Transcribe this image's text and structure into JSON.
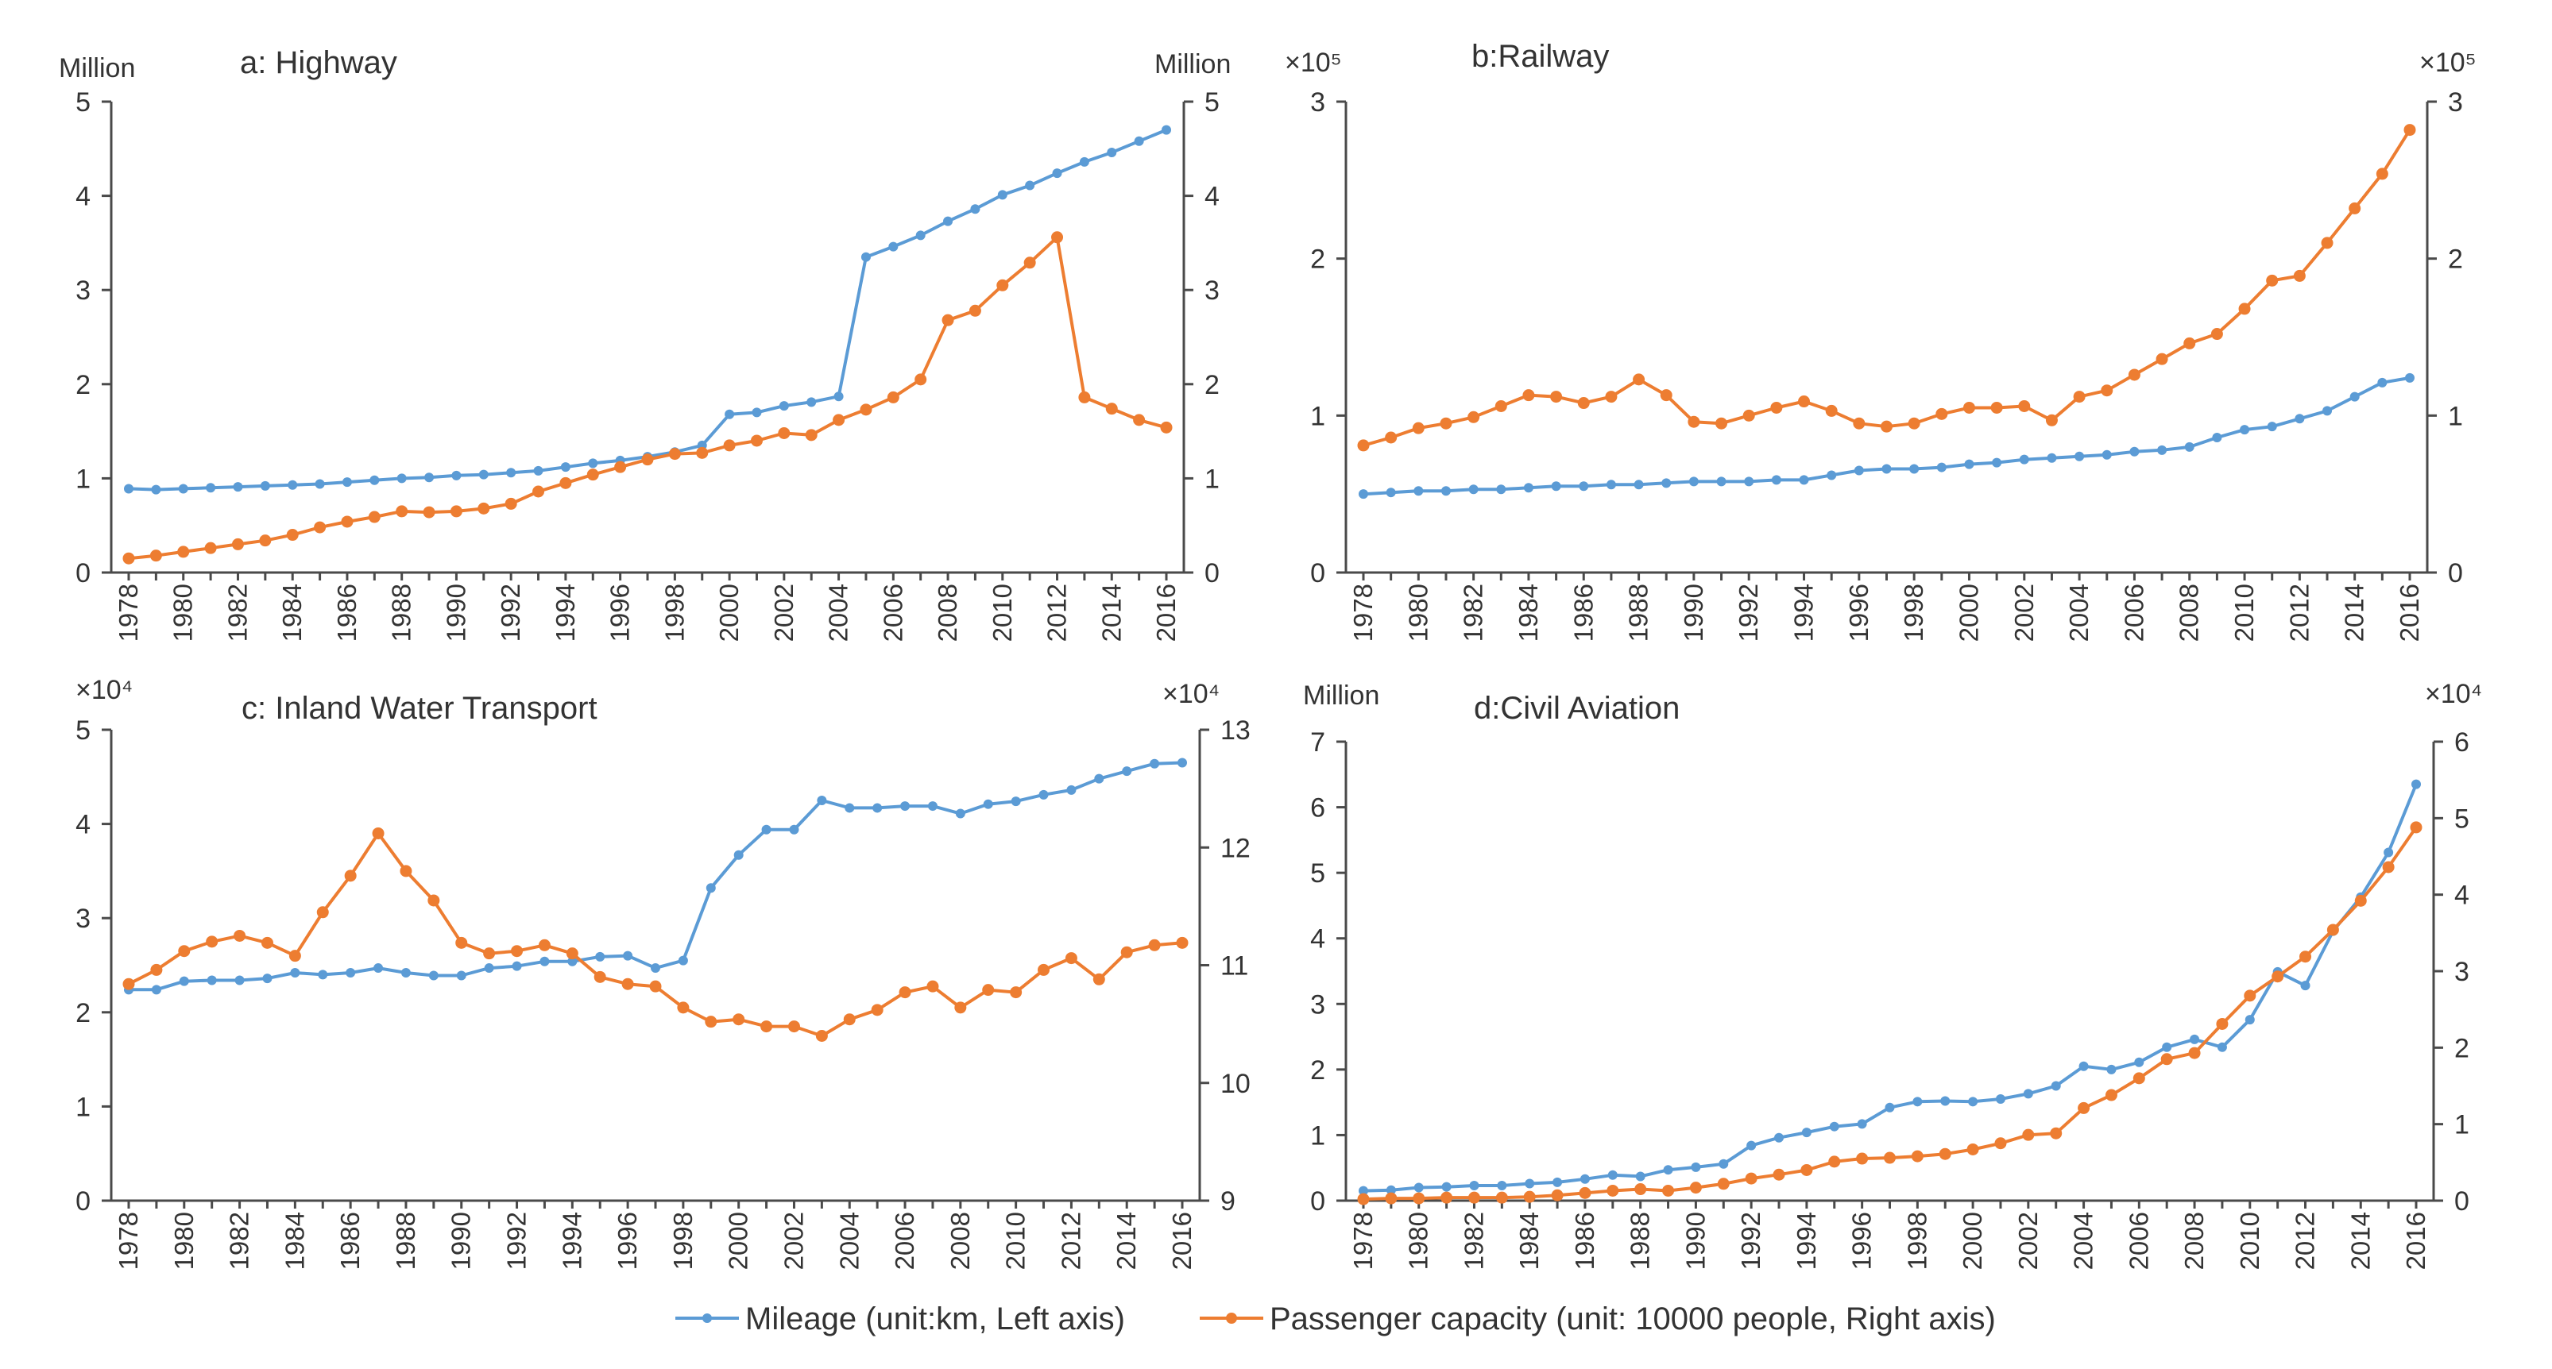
{
  "colors": {
    "mileage": "#5B9BD5",
    "passenger": "#ED7D31",
    "axis": "#4A4A4A",
    "text": "#333333"
  },
  "legend": {
    "mileage": "Mileage (unit:km, Left axis)",
    "passenger": "Passenger capacity (unit: 10000 people, Right axis)"
  },
  "chart_data": [
    {
      "type": "line",
      "title": "a: Highway",
      "left_unit": "Million",
      "right_unit": "Million",
      "x": [
        1978,
        1979,
        1980,
        1981,
        1982,
        1983,
        1984,
        1985,
        1986,
        1987,
        1988,
        1989,
        1990,
        1991,
        1992,
        1993,
        1994,
        1995,
        1996,
        1997,
        1998,
        1999,
        2000,
        2001,
        2002,
        2003,
        2004,
        2005,
        2006,
        2007,
        2008,
        2009,
        2010,
        2011,
        2012,
        2013,
        2014,
        2015,
        2016
      ],
      "x_ticks": [
        "1978",
        "1980",
        "1982",
        "1984",
        "1986",
        "1988",
        "1990",
        "1992",
        "1994",
        "1996",
        "1998",
        "2000",
        "2002",
        "2004",
        "2006",
        "2008",
        "2010",
        "2012",
        "2014",
        "2016"
      ],
      "ylim_left": [
        0,
        5
      ],
      "yticks_left": [
        "0",
        "1",
        "2",
        "3",
        "4",
        "5"
      ],
      "ylim_right": [
        0,
        5
      ],
      "yticks_right": [
        "0",
        "1",
        "2",
        "3",
        "4",
        "5"
      ],
      "series": [
        {
          "name": "Mileage (unit:km, Left axis)",
          "axis": "left",
          "values": [
            0.89,
            0.88,
            0.89,
            0.9,
            0.91,
            0.92,
            0.93,
            0.94,
            0.96,
            0.98,
            1.0,
            1.01,
            1.03,
            1.04,
            1.06,
            1.08,
            1.12,
            1.16,
            1.19,
            1.23,
            1.28,
            1.35,
            1.68,
            1.7,
            1.77,
            1.81,
            1.87,
            3.35,
            3.46,
            3.58,
            3.73,
            3.86,
            4.01,
            4.11,
            4.24,
            4.36,
            4.46,
            4.58,
            4.7
          ]
        },
        {
          "name": "Passenger capacity (unit: 10000 people, Right axis)",
          "axis": "right",
          "values": [
            0.15,
            0.18,
            0.22,
            0.26,
            0.3,
            0.34,
            0.4,
            0.48,
            0.54,
            0.59,
            0.65,
            0.64,
            0.65,
            0.68,
            0.73,
            0.86,
            0.95,
            1.04,
            1.12,
            1.2,
            1.26,
            1.27,
            1.35,
            1.4,
            1.48,
            1.46,
            1.62,
            1.73,
            1.86,
            2.05,
            2.68,
            2.78,
            3.05,
            3.29,
            3.56,
            1.86,
            1.74,
            1.62,
            1.54
          ]
        }
      ]
    },
    {
      "type": "line",
      "title": "b:Railway",
      "left_unit": "×10⁵",
      "right_unit": "×10⁵",
      "x": [
        1978,
        1979,
        1980,
        1981,
        1982,
        1983,
        1984,
        1985,
        1986,
        1987,
        1988,
        1989,
        1990,
        1991,
        1992,
        1993,
        1994,
        1995,
        1996,
        1997,
        1998,
        1999,
        2000,
        2001,
        2002,
        2003,
        2004,
        2005,
        2006,
        2007,
        2008,
        2009,
        2010,
        2011,
        2012,
        2013,
        2014,
        2015,
        2016
      ],
      "x_ticks": [
        "1978",
        "1980",
        "1982",
        "1984",
        "1986",
        "1988",
        "1990",
        "1992",
        "1994",
        "1996",
        "1998",
        "2000",
        "2002",
        "2004",
        "2006",
        "2008",
        "2010",
        "2012",
        "2014",
        "2016"
      ],
      "ylim_left": [
        0,
        3
      ],
      "yticks_left": [
        "0",
        "1",
        "2",
        "3"
      ],
      "ylim_right": [
        0,
        3
      ],
      "yticks_right": [
        "0",
        "1",
        "2",
        "3"
      ],
      "series": [
        {
          "name": "Mileage (unit:km, Left axis)",
          "axis": "left",
          "values": [
            0.5,
            0.51,
            0.52,
            0.52,
            0.53,
            0.53,
            0.54,
            0.55,
            0.55,
            0.56,
            0.56,
            0.57,
            0.58,
            0.58,
            0.58,
            0.59,
            0.59,
            0.62,
            0.65,
            0.66,
            0.66,
            0.67,
            0.69,
            0.7,
            0.72,
            0.73,
            0.74,
            0.75,
            0.77,
            0.78,
            0.8,
            0.86,
            0.91,
            0.93,
            0.98,
            1.03,
            1.12,
            1.21,
            1.24
          ]
        },
        {
          "name": "Passenger capacity (unit: 10000 people, Right axis)",
          "axis": "right",
          "values": [
            0.81,
            0.86,
            0.92,
            0.95,
            0.99,
            1.06,
            1.13,
            1.12,
            1.08,
            1.12,
            1.23,
            1.13,
            0.96,
            0.95,
            1.0,
            1.05,
            1.09,
            1.03,
            0.95,
            0.93,
            0.95,
            1.01,
            1.05,
            1.05,
            1.06,
            0.97,
            1.12,
            1.16,
            1.26,
            1.36,
            1.46,
            1.52,
            1.68,
            1.86,
            1.89,
            2.1,
            2.32,
            2.54,
            2.82
          ]
        }
      ]
    },
    {
      "type": "line",
      "title": "c: Inland Water Transport",
      "left_unit": "×10⁴",
      "right_unit": "×10⁴",
      "x": [
        1978,
        1979,
        1980,
        1981,
        1982,
        1983,
        1984,
        1985,
        1986,
        1987,
        1988,
        1989,
        1990,
        1991,
        1992,
        1993,
        1994,
        1995,
        1996,
        1997,
        1998,
        1999,
        2000,
        2001,
        2002,
        2003,
        2004,
        2005,
        2006,
        2007,
        2008,
        2009,
        2010,
        2011,
        2012,
        2013,
        2014,
        2015,
        2016
      ],
      "x_ticks": [
        "1978",
        "1980",
        "1982",
        "1984",
        "1986",
        "1988",
        "1990",
        "1992",
        "1994",
        "1996",
        "1998",
        "2000",
        "2002",
        "2004",
        "2006",
        "2008",
        "2010",
        "2012",
        "2014",
        "2016"
      ],
      "ylim_left": [
        0,
        5
      ],
      "yticks_left": [
        "0",
        "1",
        "2",
        "3",
        "4",
        "5"
      ],
      "ylim_right": [
        9,
        13
      ],
      "yticks_right": [
        "9",
        "10",
        "11",
        "12",
        "13"
      ],
      "series": [
        {
          "name": "Mileage (unit:km, Left axis)",
          "axis": "left",
          "values": [
            2.24,
            2.24,
            2.33,
            2.34,
            2.34,
            2.36,
            2.42,
            2.4,
            2.42,
            2.47,
            2.42,
            2.39,
            2.39,
            2.47,
            2.49,
            2.54,
            2.54,
            2.59,
            2.6,
            2.47,
            2.55,
            3.32,
            3.67,
            3.94,
            3.94,
            4.25,
            4.17,
            4.17,
            4.19,
            4.19,
            4.11,
            4.21,
            4.24,
            4.31,
            4.36,
            4.48,
            4.56,
            4.64,
            4.65
          ]
        },
        {
          "name": "Passenger capacity (unit: 10000 people, Right axis)",
          "axis": "right",
          "values": [
            10.84,
            10.96,
            11.12,
            11.2,
            11.25,
            11.19,
            11.08,
            11.45,
            11.76,
            12.12,
            11.8,
            11.55,
            11.19,
            11.1,
            11.12,
            11.17,
            11.1,
            10.9,
            10.84,
            10.82,
            10.64,
            10.52,
            10.54,
            10.48,
            10.48,
            10.4,
            10.54,
            10.62,
            10.77,
            10.82,
            10.64,
            10.79,
            10.77,
            10.96,
            11.06,
            10.88,
            11.11,
            11.17,
            11.19
          ]
        }
      ]
    },
    {
      "type": "line",
      "title": "d:Civil Aviation",
      "left_unit": "Million",
      "right_unit": "×10⁴",
      "x": [
        1978,
        1979,
        1980,
        1981,
        1982,
        1983,
        1984,
        1985,
        1986,
        1987,
        1988,
        1989,
        1990,
        1991,
        1992,
        1993,
        1994,
        1995,
        1996,
        1997,
        1998,
        1999,
        2000,
        2001,
        2002,
        2003,
        2004,
        2005,
        2006,
        2007,
        2008,
        2009,
        2010,
        2011,
        2012,
        2013,
        2014,
        2015,
        2016
      ],
      "x_ticks": [
        "1978",
        "1980",
        "1982",
        "1984",
        "1986",
        "1988",
        "1990",
        "1992",
        "1994",
        "1996",
        "1998",
        "2000",
        "2002",
        "2004",
        "2006",
        "2008",
        "2010",
        "2012",
        "2014",
        "2016"
      ],
      "ylim_left": [
        0,
        7
      ],
      "yticks_left": [
        "0",
        "1",
        "2",
        "3",
        "4",
        "5",
        "6",
        "7"
      ],
      "ylim_right": [
        0,
        6
      ],
      "yticks_right": [
        "0",
        "1",
        "2",
        "3",
        "4",
        "5",
        "6"
      ],
      "series": [
        {
          "name": "Mileage (unit:km, Left axis)",
          "axis": "left",
          "values": [
            0.15,
            0.16,
            0.2,
            0.21,
            0.23,
            0.23,
            0.26,
            0.28,
            0.33,
            0.39,
            0.37,
            0.47,
            0.51,
            0.56,
            0.84,
            0.96,
            1.04,
            1.13,
            1.17,
            1.42,
            1.51,
            1.52,
            1.51,
            1.55,
            1.63,
            1.75,
            2.05,
            2.0,
            2.11,
            2.34,
            2.46,
            2.34,
            2.76,
            3.49,
            3.28,
            4.11,
            4.63,
            5.31,
            6.35
          ]
        },
        {
          "name": "Passenger capacity (unit: 10000 people, Right axis)",
          "axis": "right",
          "values": [
            0.02,
            0.03,
            0.03,
            0.04,
            0.04,
            0.04,
            0.05,
            0.07,
            0.1,
            0.13,
            0.15,
            0.13,
            0.17,
            0.22,
            0.29,
            0.34,
            0.4,
            0.51,
            0.55,
            0.56,
            0.58,
            0.61,
            0.67,
            0.75,
            0.86,
            0.88,
            1.21,
            1.38,
            1.6,
            1.85,
            1.93,
            2.31,
            2.68,
            2.93,
            3.19,
            3.54,
            3.92,
            4.36,
            4.88
          ]
        }
      ]
    }
  ]
}
